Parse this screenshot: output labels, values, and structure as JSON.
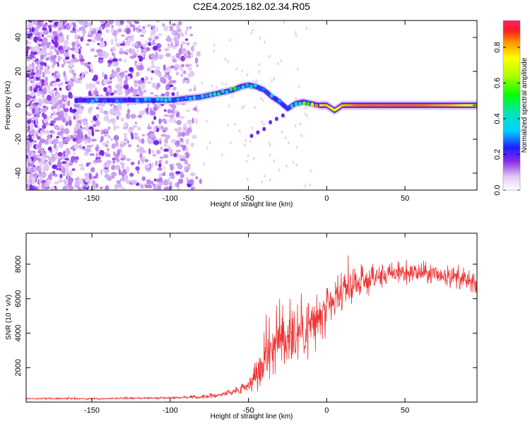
{
  "title": "C2E4.2025.182.02.34.R05",
  "chart_data": [
    {
      "type": "heatmap",
      "title": "C2E4.2025.182.02.34.R05",
      "xlabel": "Height of straight line (km)",
      "ylabel": "Frequency (Hz)",
      "xlim": [
        -192,
        96
      ],
      "ylim": [
        -50,
        50
      ],
      "xticks": [
        -150,
        -100,
        -50,
        0,
        50
      ],
      "yticks": [
        -40,
        -20,
        0,
        20,
        40
      ],
      "colorbar": {
        "label": "Normalized spectral amplitude",
        "range": [
          0,
          0.95
        ],
        "ticks": [
          0.0,
          0.2,
          0.4,
          0.6,
          0.8
        ],
        "tick_labels": [
          "0.0",
          "0.2",
          "0.4",
          "0.6",
          "0.8"
        ]
      },
      "ridge": {
        "x": [
          -160,
          -140,
          -120,
          -100,
          -90,
          -80,
          -70,
          -60,
          -55,
          -50,
          -45,
          -40,
          -35,
          -30,
          -25,
          -20,
          -15,
          -10,
          -5,
          0,
          5,
          10,
          20,
          40,
          60,
          80,
          96
        ],
        "y": [
          3,
          3,
          3,
          3,
          4,
          5,
          7,
          9,
          11,
          12,
          11,
          9,
          5,
          2,
          -2,
          1,
          2,
          1,
          0,
          0,
          -3,
          0,
          0,
          0,
          0,
          0,
          0
        ],
        "amplitude": [
          0.25,
          0.3,
          0.3,
          0.35,
          0.38,
          0.4,
          0.42,
          0.45,
          0.4,
          0.45,
          0.4,
          0.35,
          0.3,
          0.28,
          0.25,
          0.45,
          0.5,
          0.6,
          0.75,
          0.8,
          0.7,
          0.8,
          0.85,
          0.85,
          0.85,
          0.8,
          0.7
        ]
      },
      "secondary_branch": {
        "x": [
          -48,
          -44,
          -40,
          -36,
          -32,
          -28
        ],
        "y": [
          -18,
          -16,
          -14,
          -10,
          -8,
          -6
        ]
      },
      "noise_region_x": [
        -192,
        -85
      ]
    },
    {
      "type": "line",
      "xlabel": "Height of straight line (km)",
      "ylabel": "SNR (10 * v/v)",
      "xlim": [
        -192,
        96
      ],
      "ylim": [
        0,
        9800
      ],
      "xticks": [
        -150,
        -100,
        -50,
        0,
        50
      ],
      "yticks": [
        2000,
        4000,
        6000,
        8000
      ],
      "color": "#ee3333",
      "envelope": {
        "x": [
          -192,
          -150,
          -100,
          -80,
          -70,
          -60,
          -50,
          -45,
          -42,
          -40,
          -35,
          -30,
          -25,
          -20,
          -15,
          -10,
          -5,
          0,
          5,
          10,
          15,
          20,
          30,
          40,
          50,
          60,
          70,
          80,
          90,
          96
        ],
        "mean": [
          200,
          200,
          250,
          300,
          400,
          600,
          1000,
          1500,
          2000,
          2600,
          3200,
          3600,
          3900,
          4100,
          4300,
          4500,
          4800,
          5200,
          5800,
          6300,
          6600,
          6900,
          7200,
          7400,
          7500,
          7500,
          7400,
          7300,
          7000,
          6700
        ],
        "spread": [
          70,
          80,
          100,
          150,
          220,
          300,
          600,
          1200,
          1800,
          2500,
          3000,
          3300,
          3300,
          3200,
          3000,
          2700,
          2400,
          2000,
          1800,
          1500,
          1300,
          1200,
          1100,
          1000,
          900,
          900,
          900,
          900,
          900,
          900
        ]
      }
    }
  ]
}
